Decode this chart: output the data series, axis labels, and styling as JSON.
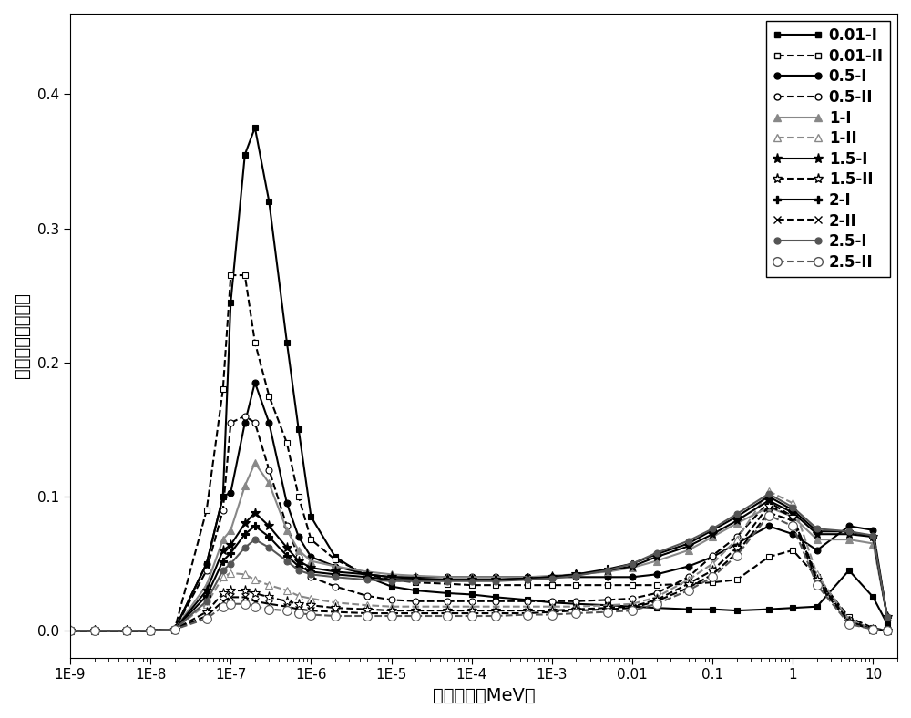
{
  "xlabel": "中子能量（MeV）",
  "ylabel": "归一化中子注量率",
  "xlim_low": 1e-09,
  "xlim_high": 20,
  "ylim": [
    -0.02,
    0.46
  ],
  "yticks": [
    0.0,
    0.1,
    0.2,
    0.3,
    0.4
  ],
  "xtick_labels": [
    "1E-9",
    "1E-8",
    "1E-7",
    "1E-6",
    "1E-5",
    "1E-4",
    "1E-3",
    "0.01",
    "0.1",
    "1",
    "10"
  ],
  "xtick_values": [
    1e-09,
    1e-08,
    1e-07,
    1e-06,
    1e-05,
    0.0001,
    0.001,
    0.01,
    0.1,
    1.0,
    10.0
  ],
  "series": [
    {
      "label": "0.01-I",
      "color": "#000000",
      "linestyle": "-",
      "marker": "s",
      "fillstyle": "full",
      "markersize": 5,
      "linewidth": 1.3,
      "x": [
        1e-09,
        2e-09,
        5e-09,
        1e-08,
        2e-08,
        5e-08,
        8e-08,
        1e-07,
        1.5e-07,
        2e-07,
        3e-07,
        5e-07,
        7e-07,
        1e-06,
        2e-06,
        5e-06,
        1e-05,
        2e-05,
        5e-05,
        0.0001,
        0.0002,
        0.0005,
        0.001,
        0.002,
        0.005,
        0.01,
        0.02,
        0.05,
        0.1,
        0.2,
        0.5,
        1.0,
        2.0,
        5.0,
        10.0,
        15.0
      ],
      "y": [
        0.0,
        0.0,
        0.0,
        0.0,
        0.001,
        0.05,
        0.1,
        0.245,
        0.355,
        0.375,
        0.32,
        0.215,
        0.15,
        0.085,
        0.055,
        0.04,
        0.033,
        0.03,
        0.028,
        0.027,
        0.025,
        0.023,
        0.021,
        0.02,
        0.019,
        0.018,
        0.017,
        0.016,
        0.016,
        0.015,
        0.016,
        0.017,
        0.018,
        0.045,
        0.025,
        0.005
      ]
    },
    {
      "label": "0.01-II",
      "color": "#000000",
      "linestyle": "--",
      "marker": "s",
      "fillstyle": "none",
      "markersize": 5,
      "linewidth": 1.3,
      "x": [
        1e-09,
        2e-09,
        5e-09,
        1e-08,
        2e-08,
        5e-08,
        8e-08,
        1e-07,
        1.5e-07,
        2e-07,
        3e-07,
        5e-07,
        7e-07,
        1e-06,
        2e-06,
        5e-06,
        1e-05,
        2e-05,
        5e-05,
        0.0001,
        0.0002,
        0.0005,
        0.001,
        0.002,
        0.005,
        0.01,
        0.02,
        0.05,
        0.1,
        0.2,
        0.5,
        1.0,
        2.0,
        5.0,
        10.0,
        15.0
      ],
      "y": [
        0.0,
        0.0,
        0.0,
        0.0,
        0.001,
        0.09,
        0.18,
        0.265,
        0.265,
        0.215,
        0.175,
        0.14,
        0.1,
        0.068,
        0.053,
        0.042,
        0.038,
        0.036,
        0.035,
        0.034,
        0.034,
        0.034,
        0.034,
        0.034,
        0.034,
        0.034,
        0.034,
        0.035,
        0.036,
        0.038,
        0.055,
        0.06,
        0.04,
        0.01,
        0.002,
        0.0
      ]
    },
    {
      "label": "0.5-I",
      "color": "#000000",
      "linestyle": "-",
      "marker": "o",
      "fillstyle": "full",
      "markersize": 5,
      "linewidth": 1.3,
      "x": [
        1e-09,
        2e-09,
        5e-09,
        1e-08,
        2e-08,
        5e-08,
        8e-08,
        1e-07,
        1.5e-07,
        2e-07,
        3e-07,
        5e-07,
        7e-07,
        1e-06,
        2e-06,
        5e-06,
        1e-05,
        2e-05,
        5e-05,
        0.0001,
        0.0002,
        0.0005,
        0.001,
        0.002,
        0.005,
        0.01,
        0.02,
        0.05,
        0.1,
        0.2,
        0.5,
        1.0,
        2.0,
        5.0,
        10.0,
        15.0
      ],
      "y": [
        0.0,
        0.0,
        0.0,
        0.0,
        0.001,
        0.05,
        0.1,
        0.103,
        0.155,
        0.185,
        0.155,
        0.095,
        0.07,
        0.055,
        0.048,
        0.042,
        0.04,
        0.04,
        0.04,
        0.04,
        0.04,
        0.04,
        0.04,
        0.04,
        0.04,
        0.04,
        0.042,
        0.048,
        0.055,
        0.065,
        0.078,
        0.072,
        0.06,
        0.078,
        0.075,
        0.01
      ]
    },
    {
      "label": "0.5-II",
      "color": "#000000",
      "linestyle": "--",
      "marker": "o",
      "fillstyle": "none",
      "markersize": 5,
      "linewidth": 1.3,
      "x": [
        1e-09,
        2e-09,
        5e-09,
        1e-08,
        2e-08,
        5e-08,
        8e-08,
        1e-07,
        1.5e-07,
        2e-07,
        3e-07,
        5e-07,
        7e-07,
        1e-06,
        2e-06,
        5e-06,
        1e-05,
        2e-05,
        5e-05,
        0.0001,
        0.0002,
        0.0005,
        0.001,
        0.002,
        0.005,
        0.01,
        0.02,
        0.05,
        0.1,
        0.2,
        0.5,
        1.0,
        2.0,
        5.0,
        10.0,
        15.0
      ],
      "y": [
        0.0,
        0.0,
        0.0,
        0.0,
        0.001,
        0.045,
        0.09,
        0.155,
        0.16,
        0.155,
        0.12,
        0.078,
        0.055,
        0.04,
        0.033,
        0.026,
        0.023,
        0.022,
        0.022,
        0.022,
        0.022,
        0.022,
        0.022,
        0.022,
        0.023,
        0.024,
        0.028,
        0.04,
        0.056,
        0.07,
        0.096,
        0.085,
        0.04,
        0.008,
        0.001,
        0.0
      ]
    },
    {
      "label": "1-I",
      "color": "#888888",
      "linestyle": "-",
      "marker": "^",
      "fillstyle": "full",
      "markersize": 6,
      "linewidth": 1.3,
      "x": [
        1e-09,
        2e-09,
        5e-09,
        1e-08,
        2e-08,
        5e-08,
        8e-08,
        1e-07,
        1.5e-07,
        2e-07,
        3e-07,
        5e-07,
        7e-07,
        1e-06,
        2e-06,
        5e-06,
        1e-05,
        2e-05,
        5e-05,
        0.0001,
        0.0002,
        0.0005,
        0.001,
        0.002,
        0.005,
        0.01,
        0.02,
        0.05,
        0.1,
        0.2,
        0.5,
        1.0,
        2.0,
        5.0,
        10.0,
        15.0
      ],
      "y": [
        0.0,
        0.0,
        0.0,
        0.0,
        0.001,
        0.034,
        0.068,
        0.075,
        0.108,
        0.125,
        0.11,
        0.075,
        0.06,
        0.052,
        0.048,
        0.044,
        0.042,
        0.041,
        0.04,
        0.04,
        0.04,
        0.04,
        0.041,
        0.042,
        0.044,
        0.047,
        0.052,
        0.06,
        0.07,
        0.08,
        0.092,
        0.085,
        0.068,
        0.068,
        0.065,
        0.01
      ]
    },
    {
      "label": "1-II",
      "color": "#888888",
      "linestyle": "--",
      "marker": "^",
      "fillstyle": "none",
      "markersize": 6,
      "linewidth": 1.3,
      "x": [
        1e-09,
        2e-09,
        5e-09,
        1e-08,
        2e-08,
        5e-08,
        8e-08,
        1e-07,
        1.5e-07,
        2e-07,
        3e-07,
        5e-07,
        7e-07,
        1e-06,
        2e-06,
        5e-06,
        1e-05,
        2e-05,
        5e-05,
        0.0001,
        0.0002,
        0.0005,
        0.001,
        0.002,
        0.005,
        0.01,
        0.02,
        0.05,
        0.1,
        0.2,
        0.5,
        1.0,
        2.0,
        5.0,
        10.0,
        15.0
      ],
      "y": [
        0.0,
        0.0,
        0.0,
        0.0,
        0.001,
        0.02,
        0.04,
        0.043,
        0.042,
        0.038,
        0.034,
        0.03,
        0.026,
        0.024,
        0.021,
        0.019,
        0.018,
        0.018,
        0.018,
        0.018,
        0.018,
        0.018,
        0.018,
        0.018,
        0.019,
        0.02,
        0.025,
        0.038,
        0.05,
        0.068,
        0.104,
        0.095,
        0.042,
        0.008,
        0.001,
        0.0
      ]
    },
    {
      "label": "1.5-I",
      "color": "#000000",
      "linestyle": "-",
      "marker": "*",
      "fillstyle": "full",
      "markersize": 7,
      "linewidth": 1.3,
      "x": [
        1e-09,
        2e-09,
        5e-09,
        1e-08,
        2e-08,
        5e-08,
        8e-08,
        1e-07,
        1.5e-07,
        2e-07,
        3e-07,
        5e-07,
        7e-07,
        1e-06,
        2e-06,
        5e-06,
        1e-05,
        2e-05,
        5e-05,
        0.0001,
        0.0002,
        0.0005,
        0.001,
        0.002,
        0.005,
        0.01,
        0.02,
        0.05,
        0.1,
        0.2,
        0.5,
        1.0,
        2.0,
        5.0,
        10.0,
        15.0
      ],
      "y": [
        0.0,
        0.0,
        0.0,
        0.0,
        0.001,
        0.03,
        0.06,
        0.064,
        0.08,
        0.088,
        0.078,
        0.062,
        0.052,
        0.047,
        0.044,
        0.042,
        0.04,
        0.039,
        0.038,
        0.038,
        0.038,
        0.039,
        0.04,
        0.042,
        0.045,
        0.048,
        0.055,
        0.063,
        0.072,
        0.082,
        0.097,
        0.088,
        0.072,
        0.072,
        0.07,
        0.01
      ]
    },
    {
      "label": "1.5-II",
      "color": "#000000",
      "linestyle": "--",
      "marker": "*",
      "fillstyle": "none",
      "markersize": 7,
      "linewidth": 1.3,
      "x": [
        1e-09,
        2e-09,
        5e-09,
        1e-08,
        2e-08,
        5e-08,
        8e-08,
        1e-07,
        1.5e-07,
        2e-07,
        3e-07,
        5e-07,
        7e-07,
        1e-06,
        2e-06,
        5e-06,
        1e-05,
        2e-05,
        5e-05,
        0.0001,
        0.0002,
        0.0005,
        0.001,
        0.002,
        0.005,
        0.01,
        0.02,
        0.05,
        0.1,
        0.2,
        0.5,
        1.0,
        2.0,
        5.0,
        10.0,
        15.0
      ],
      "y": [
        0.0,
        0.0,
        0.0,
        0.0,
        0.001,
        0.014,
        0.028,
        0.03,
        0.03,
        0.028,
        0.025,
        0.022,
        0.02,
        0.019,
        0.017,
        0.016,
        0.015,
        0.015,
        0.015,
        0.015,
        0.015,
        0.015,
        0.015,
        0.016,
        0.017,
        0.018,
        0.023,
        0.035,
        0.045,
        0.062,
        0.093,
        0.085,
        0.038,
        0.007,
        0.001,
        0.0
      ]
    },
    {
      "label": "2-I",
      "color": "#000000",
      "linestyle": "-",
      "marker": "P",
      "fillstyle": "full",
      "markersize": 6,
      "linewidth": 1.3,
      "x": [
        1e-09,
        2e-09,
        5e-09,
        1e-08,
        2e-08,
        5e-08,
        8e-08,
        1e-07,
        1.5e-07,
        2e-07,
        3e-07,
        5e-07,
        7e-07,
        1e-06,
        2e-06,
        5e-06,
        1e-05,
        2e-05,
        5e-05,
        0.0001,
        0.0002,
        0.0005,
        0.001,
        0.002,
        0.005,
        0.01,
        0.02,
        0.05,
        0.1,
        0.2,
        0.5,
        1.0,
        2.0,
        5.0,
        10.0,
        15.0
      ],
      "y": [
        0.0,
        0.0,
        0.0,
        0.0,
        0.001,
        0.026,
        0.052,
        0.058,
        0.072,
        0.078,
        0.07,
        0.056,
        0.048,
        0.044,
        0.042,
        0.04,
        0.038,
        0.038,
        0.038,
        0.038,
        0.038,
        0.039,
        0.04,
        0.042,
        0.046,
        0.05,
        0.057,
        0.065,
        0.075,
        0.085,
        0.1,
        0.09,
        0.074,
        0.074,
        0.07,
        0.01
      ]
    },
    {
      "label": "2-II",
      "color": "#000000",
      "linestyle": "--",
      "marker": "x",
      "fillstyle": "full",
      "markersize": 6,
      "linewidth": 1.3,
      "x": [
        1e-09,
        2e-09,
        5e-09,
        1e-08,
        2e-08,
        5e-08,
        8e-08,
        1e-07,
        1.5e-07,
        2e-07,
        3e-07,
        5e-07,
        7e-07,
        1e-06,
        2e-06,
        5e-06,
        1e-05,
        2e-05,
        5e-05,
        0.0001,
        0.0002,
        0.0005,
        0.001,
        0.002,
        0.005,
        0.01,
        0.02,
        0.05,
        0.1,
        0.2,
        0.5,
        1.0,
        2.0,
        5.0,
        10.0,
        15.0
      ],
      "y": [
        0.0,
        0.0,
        0.0,
        0.0,
        0.001,
        0.011,
        0.022,
        0.025,
        0.025,
        0.022,
        0.02,
        0.018,
        0.016,
        0.015,
        0.014,
        0.013,
        0.013,
        0.013,
        0.013,
        0.013,
        0.013,
        0.013,
        0.014,
        0.015,
        0.016,
        0.017,
        0.022,
        0.032,
        0.042,
        0.058,
        0.088,
        0.082,
        0.036,
        0.006,
        0.001,
        0.0
      ]
    },
    {
      "label": "2.5-I",
      "color": "#555555",
      "linestyle": "-",
      "marker": "o",
      "fillstyle": "full",
      "markersize": 5,
      "linewidth": 1.3,
      "x": [
        1e-09,
        2e-09,
        5e-09,
        1e-08,
        2e-08,
        5e-08,
        8e-08,
        1e-07,
        1.5e-07,
        2e-07,
        3e-07,
        5e-07,
        7e-07,
        1e-06,
        2e-06,
        5e-06,
        1e-05,
        2e-05,
        5e-05,
        0.0001,
        0.0002,
        0.0005,
        0.001,
        0.002,
        0.005,
        0.01,
        0.02,
        0.05,
        0.1,
        0.2,
        0.5,
        1.0,
        2.0,
        5.0,
        10.0,
        15.0
      ],
      "y": [
        0.0,
        0.0,
        0.0,
        0.0,
        0.001,
        0.022,
        0.045,
        0.05,
        0.062,
        0.068,
        0.062,
        0.052,
        0.045,
        0.042,
        0.04,
        0.038,
        0.037,
        0.037,
        0.037,
        0.037,
        0.037,
        0.038,
        0.039,
        0.041,
        0.045,
        0.05,
        0.058,
        0.067,
        0.076,
        0.087,
        0.102,
        0.092,
        0.076,
        0.074,
        0.071,
        0.01
      ]
    },
    {
      "label": "2.5-II",
      "color": "#555555",
      "linestyle": "--",
      "marker": "o",
      "fillstyle": "none",
      "markersize": 7,
      "linewidth": 1.3,
      "x": [
        1e-09,
        2e-09,
        5e-09,
        1e-08,
        2e-08,
        5e-08,
        8e-08,
        1e-07,
        1.5e-07,
        2e-07,
        3e-07,
        5e-07,
        7e-07,
        1e-06,
        2e-06,
        5e-06,
        1e-05,
        2e-05,
        5e-05,
        0.0001,
        0.0002,
        0.0005,
        0.001,
        0.002,
        0.005,
        0.01,
        0.02,
        0.05,
        0.1,
        0.2,
        0.5,
        1.0,
        2.0,
        5.0,
        10.0,
        15.0
      ],
      "y": [
        0.0,
        0.0,
        0.0,
        0.0,
        0.001,
        0.009,
        0.018,
        0.02,
        0.02,
        0.018,
        0.016,
        0.015,
        0.013,
        0.012,
        0.011,
        0.011,
        0.011,
        0.011,
        0.011,
        0.011,
        0.011,
        0.012,
        0.012,
        0.013,
        0.014,
        0.015,
        0.02,
        0.03,
        0.04,
        0.056,
        0.086,
        0.078,
        0.034,
        0.005,
        0.001,
        0.0
      ]
    }
  ]
}
